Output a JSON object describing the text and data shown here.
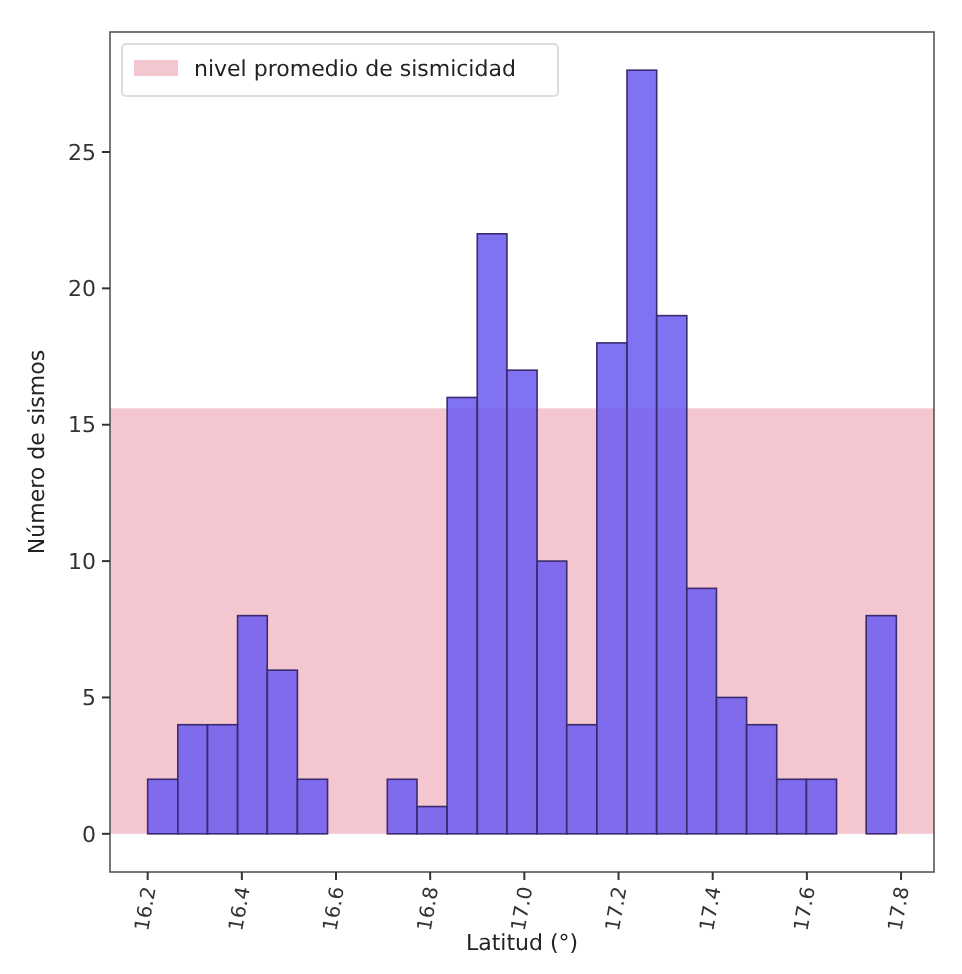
{
  "chart_data": {
    "type": "histogram",
    "xlabel": "Latitud (°)",
    "ylabel": "Número de sismos",
    "bins": [
      16.2,
      16.264,
      16.327,
      16.391,
      16.454,
      16.518,
      16.582,
      16.645,
      16.709,
      16.772,
      16.836,
      16.9,
      16.963,
      17.027,
      17.09,
      17.154,
      17.218,
      17.281,
      17.345,
      17.408,
      17.472,
      17.536,
      17.599,
      17.663,
      17.726,
      17.79
    ],
    "values": [
      2,
      4,
      4,
      8,
      6,
      2,
      0,
      0,
      2,
      1,
      16,
      22,
      17,
      10,
      4,
      18,
      28,
      19,
      9,
      5,
      4,
      2,
      2,
      0,
      8
    ],
    "color": "#6a5af0",
    "xlim": [
      16.12,
      17.87
    ],
    "ylim": [
      -1.4,
      29.4
    ],
    "xticks": [
      16.2,
      16.4,
      16.6,
      16.8,
      {
        "value": 17,
        "label": "17.0"
      },
      17.2,
      17.4,
      17.6,
      17.8
    ],
    "yticks": [
      0,
      5,
      10,
      15,
      20,
      25
    ],
    "bands": [
      {
        "axis": "y",
        "from": 0,
        "to": 15.6,
        "label": "nivel promedio de sismicidad",
        "color": "#f4c6cf"
      }
    ],
    "legend": "top left",
    "grid": false
  }
}
